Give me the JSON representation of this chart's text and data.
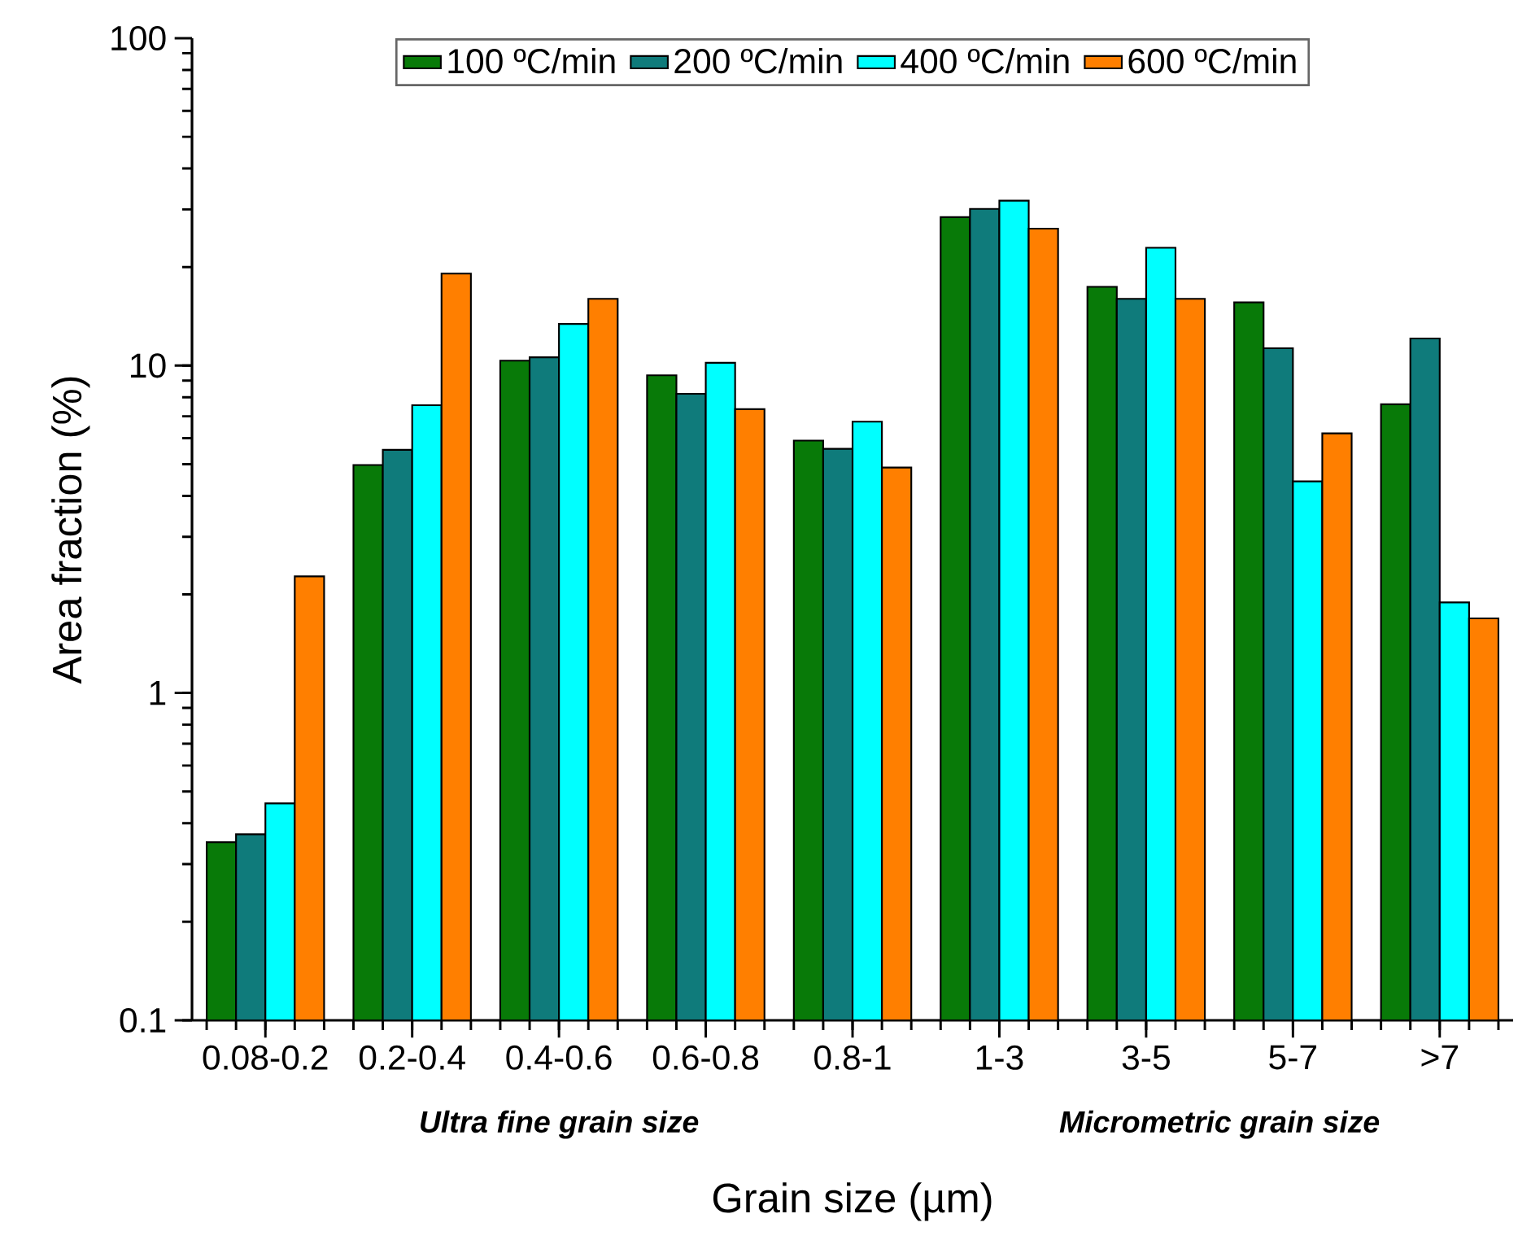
{
  "chart_data": {
    "type": "bar",
    "xlabel": "Grain size (µm)",
    "ylabel": "Area fraction (%)",
    "log": "y",
    "ylim": [
      0.1,
      100
    ],
    "yticks": [
      0.1,
      1,
      10,
      100
    ],
    "legend": "top",
    "grid": false,
    "categories": [
      "0.08-0.2",
      "0.2-0.4",
      "0.4-0.6",
      "0.6-0.8",
      "0.8-1",
      "1-3",
      "3-5",
      "5-7",
      ">7"
    ],
    "series": [
      {
        "name": "100 ºC/min",
        "color": "#087a08",
        "values": [
          0.35,
          4.97,
          10.35,
          9.34,
          5.9,
          28.4,
          17.4,
          15.6,
          7.62
        ]
      },
      {
        "name": "200  ºC/min",
        "color": "#0f7b7b",
        "values": [
          0.37,
          5.53,
          10.6,
          8.2,
          5.57,
          30.1,
          16.0,
          11.3,
          12.1
        ]
      },
      {
        "name": "400  ºC/min",
        "color": "#00ffff",
        "values": [
          0.46,
          7.57,
          13.4,
          10.2,
          6.74,
          31.9,
          22.9,
          4.43,
          1.89
        ]
      },
      {
        "name": "600 ºC/min",
        "color": "#ff7f00",
        "values": [
          2.27,
          19.1,
          16.0,
          7.36,
          4.88,
          26.2,
          16.0,
          6.21,
          1.69
        ]
      }
    ],
    "annotations": [
      "Ultra fine grain size",
      "Micrometric grain size"
    ]
  }
}
